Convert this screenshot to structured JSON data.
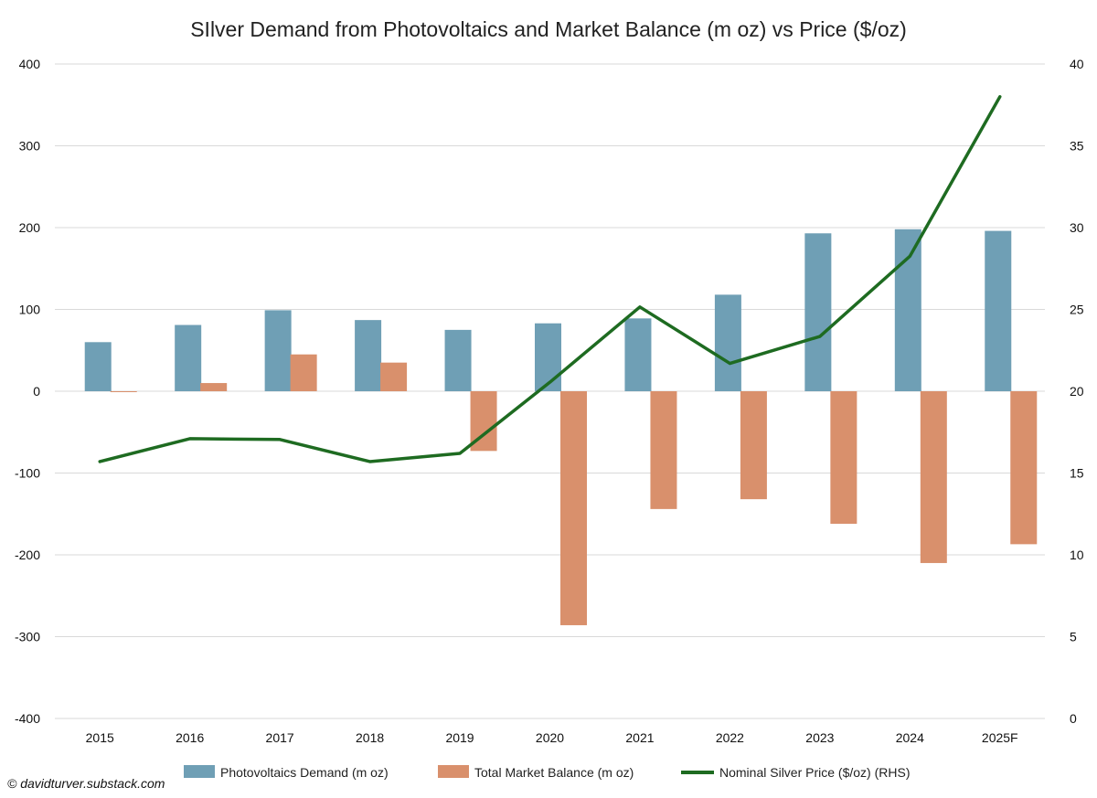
{
  "chart_data": {
    "type": "bar",
    "title": "SIlver Demand from Photovoltaics and Market Balance (m oz) vs Price ($/oz)",
    "categories": [
      "2015",
      "2016",
      "2017",
      "2018",
      "2019",
      "2020",
      "2021",
      "2022",
      "2023",
      "2024",
      "2025F"
    ],
    "series": [
      {
        "name": "Photovoltaics Demand (m oz)",
        "type": "bar",
        "axis": "left",
        "color": "#6f9fb5",
        "values": [
          60,
          81,
          99,
          87,
          75,
          83,
          89,
          118,
          193,
          198,
          196
        ]
      },
      {
        "name": "Total Market Balance (m oz)",
        "type": "bar",
        "axis": "left",
        "color": "#d9906c",
        "values": [
          -1,
          10,
          45,
          35,
          -73,
          -286,
          -144,
          -132,
          -162,
          -210,
          -187
        ]
      },
      {
        "name": "Nominal Silver Price ($/oz) (RHS)",
        "type": "line",
        "axis": "right",
        "color": "#1e6b21",
        "values": [
          15.7,
          17.1,
          17.05,
          15.7,
          16.2,
          20.55,
          25.15,
          21.7,
          23.35,
          28.25,
          38.0
        ]
      }
    ],
    "ylim": [
      -400,
      400
    ],
    "yticks": [
      400,
      300,
      200,
      100,
      0,
      -100,
      -200,
      -300,
      -400
    ],
    "yticks_text": [
      "400",
      "300",
      "200",
      "100",
      "0",
      "-100",
      "-200",
      "-300",
      "-400"
    ],
    "y2lim": [
      0,
      40
    ],
    "y2ticks": [
      40,
      35,
      30,
      25,
      20,
      15,
      10,
      5,
      0
    ],
    "y2ticks_text": [
      "40",
      "35",
      "30",
      "25",
      "20",
      "15",
      "10",
      "5",
      "0"
    ],
    "grid": true,
    "legend_position": "bottom",
    "xlabel": "",
    "ylabel": "",
    "y2label": ""
  },
  "credit": "© davidturver.substack.com",
  "colors": {
    "grid": "#d9d9d9",
    "text": "#111111"
  }
}
